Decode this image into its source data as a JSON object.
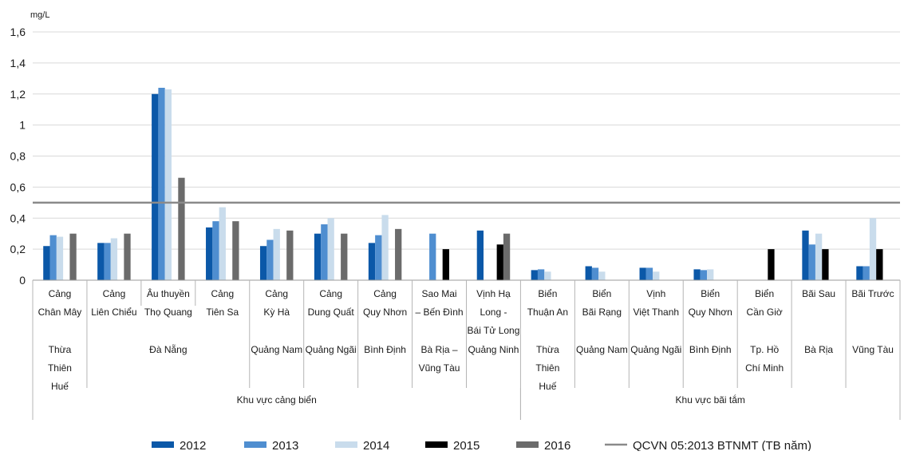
{
  "chart_data": {
    "type": "bar",
    "unit_label": "mg/L",
    "ylim": [
      0,
      1.6
    ],
    "yticks": [
      "0",
      "0,2",
      "0,4",
      "0,6",
      "0,8",
      "1",
      "1,2",
      "1,4",
      "1,6"
    ],
    "grid": true,
    "legend_position": "bottom",
    "categories": [
      {
        "lines": [
          "Cảng",
          "Chân Mây"
        ]
      },
      {
        "lines": [
          "Cảng",
          "Liên Chiểu"
        ]
      },
      {
        "lines": [
          "Âu thuyền",
          "Thọ Quang"
        ]
      },
      {
        "lines": [
          "Cảng",
          "Tiên Sa"
        ]
      },
      {
        "lines": [
          "Cảng",
          "Kỳ Hà"
        ]
      },
      {
        "lines": [
          "Cảng",
          "Dung Quất"
        ]
      },
      {
        "lines": [
          "Cảng",
          "Quy Nhơn"
        ]
      },
      {
        "lines": [
          "Sao Mai",
          "– Bến Đình"
        ]
      },
      {
        "lines": [
          "Vịnh Hạ",
          "Long -",
          "Bái Tử Long"
        ]
      },
      {
        "lines": [
          "Biển",
          "Thuận An"
        ]
      },
      {
        "lines": [
          "Biển",
          "Bãi Rạng"
        ]
      },
      {
        "lines": [
          "Vịnh",
          "Việt Thanh"
        ]
      },
      {
        "lines": [
          "Biển",
          "Quy Nhơn"
        ]
      },
      {
        "lines": [
          "Biển",
          "Cần Giờ"
        ]
      },
      {
        "lines": [
          "Bãi Sau"
        ]
      },
      {
        "lines": [
          "Bãi Trước"
        ]
      }
    ],
    "provinces": [
      {
        "lines": [
          "Thừa",
          "Thiên",
          "Huế"
        ],
        "from": 0,
        "to": 0
      },
      {
        "lines": [
          "Đà Nẵng"
        ],
        "from": 1,
        "to": 3
      },
      {
        "lines": [
          "Quảng Nam"
        ],
        "from": 4,
        "to": 4
      },
      {
        "lines": [
          "Quảng Ngãi"
        ],
        "from": 5,
        "to": 5
      },
      {
        "lines": [
          "Bình Định"
        ],
        "from": 6,
        "to": 6
      },
      {
        "lines": [
          "Bà Rịa –",
          "Vũng Tàu"
        ],
        "from": 7,
        "to": 7
      },
      {
        "lines": [
          "Quảng Ninh"
        ],
        "from": 8,
        "to": 8
      },
      {
        "lines": [
          "Thừa",
          "Thiên",
          "Huế"
        ],
        "from": 9,
        "to": 9
      },
      {
        "lines": [
          "Quảng Nam"
        ],
        "from": 10,
        "to": 10
      },
      {
        "lines": [
          "Quảng Ngãi"
        ],
        "from": 11,
        "to": 11
      },
      {
        "lines": [
          "Bình Định"
        ],
        "from": 12,
        "to": 12
      },
      {
        "lines": [
          "Tp. Hồ",
          "Chí Minh"
        ],
        "from": 13,
        "to": 13
      },
      {
        "lines": [
          "Bà Rịa"
        ],
        "from": 14,
        "to": 14
      },
      {
        "lines": [
          "Vũng Tàu"
        ],
        "from": 15,
        "to": 15
      }
    ],
    "groups": [
      {
        "label": "Khu vực cảng biển",
        "from": 0,
        "to": 8
      },
      {
        "label": "Khu vực bãi tắm",
        "from": 9,
        "to": 15
      }
    ],
    "series": [
      {
        "name": "2012",
        "color": "#0b58a8",
        "values": [
          0.22,
          0.24,
          1.2,
          0.34,
          0.22,
          0.3,
          0.24,
          null,
          0.32,
          0.065,
          0.09,
          0.08,
          0.07,
          null,
          0.32,
          0.09
        ]
      },
      {
        "name": "2013",
        "color": "#4f8ed0",
        "values": [
          0.29,
          0.24,
          1.24,
          0.38,
          0.26,
          0.36,
          0.29,
          0.3,
          null,
          0.07,
          0.08,
          0.08,
          0.065,
          null,
          0.23,
          0.09
        ]
      },
      {
        "name": "2014",
        "color": "#c9dcec",
        "values": [
          0.28,
          0.27,
          1.23,
          0.47,
          0.33,
          0.4,
          0.42,
          null,
          null,
          0.055,
          0.055,
          0.055,
          0.07,
          null,
          0.3,
          0.4
        ]
      },
      {
        "name": "2015",
        "color": "#000000",
        "values": [
          null,
          null,
          null,
          null,
          null,
          null,
          null,
          0.2,
          0.23,
          null,
          null,
          null,
          null,
          0.2,
          0.2,
          0.2
        ]
      },
      {
        "name": "2016",
        "color": "#6b6b6b",
        "values": [
          0.3,
          0.3,
          0.66,
          0.38,
          0.32,
          0.3,
          0.33,
          null,
          0.3,
          null,
          null,
          null,
          null,
          null,
          null,
          null
        ]
      }
    ],
    "reference_line": {
      "name": "QCVN 05:2013 BTNMT (TB năm)",
      "value": 0.5,
      "color": "#8a8a8a"
    }
  }
}
